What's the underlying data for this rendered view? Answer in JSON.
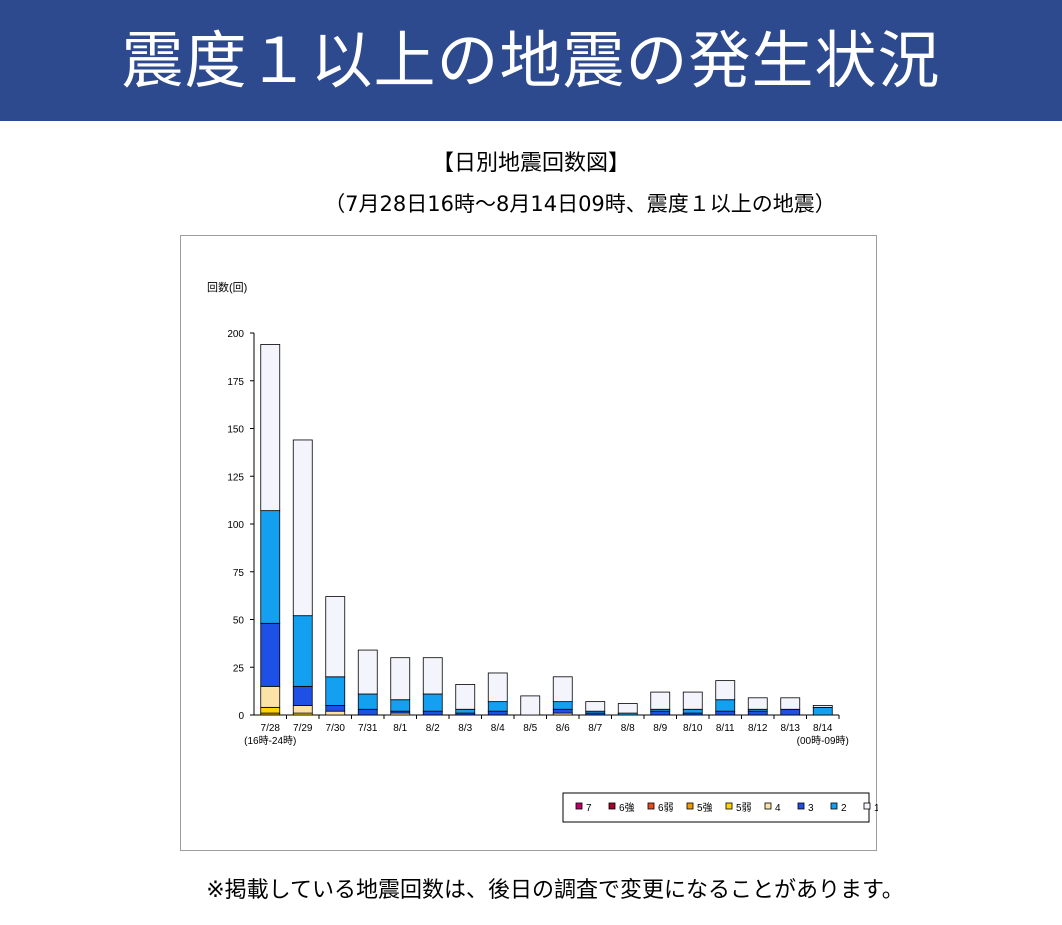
{
  "banner": {
    "title": "震度１以上の地震の発生状況",
    "color": "#2e4a8e"
  },
  "heading": {
    "title": "【日別地震回数図】",
    "subtitle": "（7月28日16時～8月14日09時、震度１以上の地震）"
  },
  "footnote": "※掲載している地震回数は、後日の調査で変更になることがあります。",
  "chart_data": {
    "type": "bar",
    "stacked": true,
    "ylabel": "回数(回)",
    "ylim": [
      0,
      200
    ],
    "yticks": [
      0,
      25,
      50,
      75,
      100,
      125,
      150,
      175,
      200
    ],
    "grid": false,
    "legend_position": "bottom-right",
    "categories": [
      "7/28",
      "7/29",
      "7/30",
      "7/31",
      "8/1",
      "8/2",
      "8/3",
      "8/4",
      "8/5",
      "8/6",
      "8/7",
      "8/8",
      "8/9",
      "8/10",
      "8/11",
      "8/12",
      "8/13",
      "8/14"
    ],
    "category_notes": [
      {
        "category": "7/28",
        "text": "(16時-24時)"
      },
      {
        "category": "8/14",
        "text": "(00時-09時)"
      }
    ],
    "series": [
      {
        "name": "7",
        "color": "#c0006a",
        "values": [
          0,
          0,
          0,
          0,
          0,
          0,
          0,
          0,
          0,
          0,
          0,
          0,
          0,
          0,
          0,
          0,
          0,
          0
        ]
      },
      {
        "name": "6強",
        "color": "#a8002a",
        "values": [
          0,
          0,
          0,
          0,
          0,
          0,
          0,
          0,
          0,
          0,
          0,
          0,
          0,
          0,
          0,
          0,
          0,
          0
        ]
      },
      {
        "name": "6弱",
        "color": "#e84a1a",
        "values": [
          0,
          0,
          0,
          0,
          0,
          0,
          0,
          0,
          0,
          0,
          0,
          0,
          0,
          0,
          0,
          0,
          0,
          0
        ]
      },
      {
        "name": "5強",
        "color": "#f09a00",
        "values": [
          1,
          0,
          0,
          0,
          0,
          0,
          0,
          0,
          0,
          0,
          0,
          0,
          0,
          0,
          0,
          0,
          0,
          0
        ]
      },
      {
        "name": "5弱",
        "color": "#ffd400",
        "values": [
          3,
          1,
          0,
          0,
          0,
          0,
          0,
          0,
          0,
          0,
          0,
          0,
          0,
          0,
          0,
          0,
          0,
          0
        ]
      },
      {
        "name": "4",
        "color": "#fbe3a8",
        "values": [
          11,
          4,
          2,
          0,
          1,
          0,
          0,
          0,
          0,
          1,
          0,
          0,
          0,
          0,
          0,
          0,
          0,
          0
        ]
      },
      {
        "name": "3",
        "color": "#1e50e6",
        "values": [
          33,
          10,
          3,
          3,
          1,
          2,
          1,
          2,
          0,
          2,
          1,
          0,
          2,
          1,
          2,
          2,
          3,
          0
        ]
      },
      {
        "name": "2",
        "color": "#14a0f0",
        "values": [
          59,
          37,
          15,
          8,
          6,
          9,
          2,
          5,
          0,
          4,
          1,
          1,
          1,
          2,
          6,
          1,
          0,
          4
        ]
      },
      {
        "name": "1",
        "color": "#f4f4fc",
        "values": [
          87,
          92,
          42,
          23,
          22,
          19,
          13,
          15,
          10,
          13,
          5,
          5,
          9,
          9,
          10,
          6,
          6,
          1
        ]
      }
    ]
  }
}
